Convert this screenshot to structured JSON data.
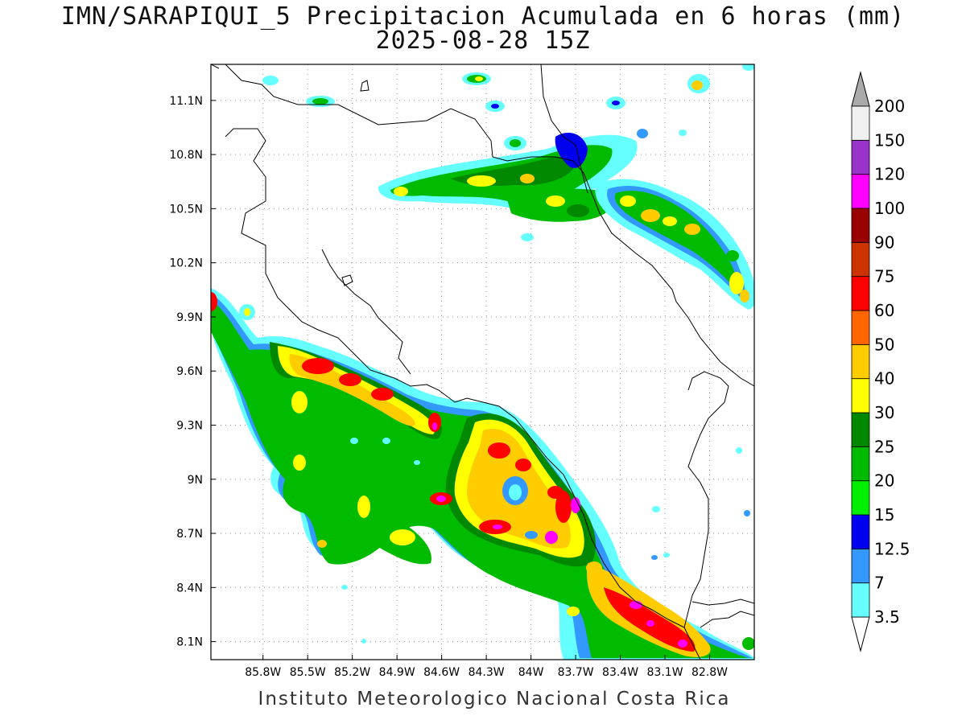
{
  "title": {
    "line1": "IMN/SARAPIQUI_5 Precipitacion Acumulada en 6 horas (mm)",
    "line2": "2025-08-28 15Z"
  },
  "credit": "Instituto Meteorologico Nacional Costa Rica",
  "map": {
    "lon_range": [
      -86.15,
      -82.5
    ],
    "lat_range": [
      8.0,
      11.3
    ],
    "x_ticks": [
      {
        "value": -85.8,
        "label": "85.8W"
      },
      {
        "value": -85.5,
        "label": "85.5W"
      },
      {
        "value": -85.2,
        "label": "85.2W"
      },
      {
        "value": -84.9,
        "label": "84.9W"
      },
      {
        "value": -84.6,
        "label": "84.6W"
      },
      {
        "value": -84.3,
        "label": "84.3W"
      },
      {
        "value": -84.0,
        "label": "84W"
      },
      {
        "value": -83.7,
        "label": "83.7W"
      },
      {
        "value": -83.4,
        "label": "83.4W"
      },
      {
        "value": -83.1,
        "label": "83.1W"
      },
      {
        "value": -82.8,
        "label": "82.8W"
      }
    ],
    "y_ticks": [
      {
        "value": 8.1,
        "label": "8.1N"
      },
      {
        "value": 8.4,
        "label": "8.4N"
      },
      {
        "value": 8.7,
        "label": "8.7N"
      },
      {
        "value": 9.0,
        "label": "9N"
      },
      {
        "value": 9.3,
        "label": "9.3N"
      },
      {
        "value": 9.6,
        "label": "9.6N"
      },
      {
        "value": 9.9,
        "label": "9.9N"
      },
      {
        "value": 10.2,
        "label": "10.2N"
      },
      {
        "value": 10.5,
        "label": "10.5N"
      },
      {
        "value": 10.8,
        "label": "10.8N"
      },
      {
        "value": 11.1,
        "label": "11.1N"
      }
    ],
    "grid": "dotted"
  },
  "colorbar": {
    "levels": [
      {
        "label": "3.5",
        "color": "#66ffff"
      },
      {
        "label": "7",
        "color": "#3399ff"
      },
      {
        "label": "12.5",
        "color": "#0000ee"
      },
      {
        "label": "15",
        "color": "#00ee00"
      },
      {
        "label": "20",
        "color": "#00bb00"
      },
      {
        "label": "25",
        "color": "#008800"
      },
      {
        "label": "30",
        "color": "#ffff00"
      },
      {
        "label": "40",
        "color": "#ffcc00"
      },
      {
        "label": "50",
        "color": "#ff6600"
      },
      {
        "label": "60",
        "color": "#ff0000"
      },
      {
        "label": "75",
        "color": "#cc3300"
      },
      {
        "label": "90",
        "color": "#990000"
      },
      {
        "label": "100",
        "color": "#ff00ff"
      },
      {
        "label": "120",
        "color": "#9933cc"
      },
      {
        "label": "150",
        "color": "#f0f0f0"
      },
      {
        "label": "200",
        "color": "#aaaaaa"
      }
    ]
  }
}
